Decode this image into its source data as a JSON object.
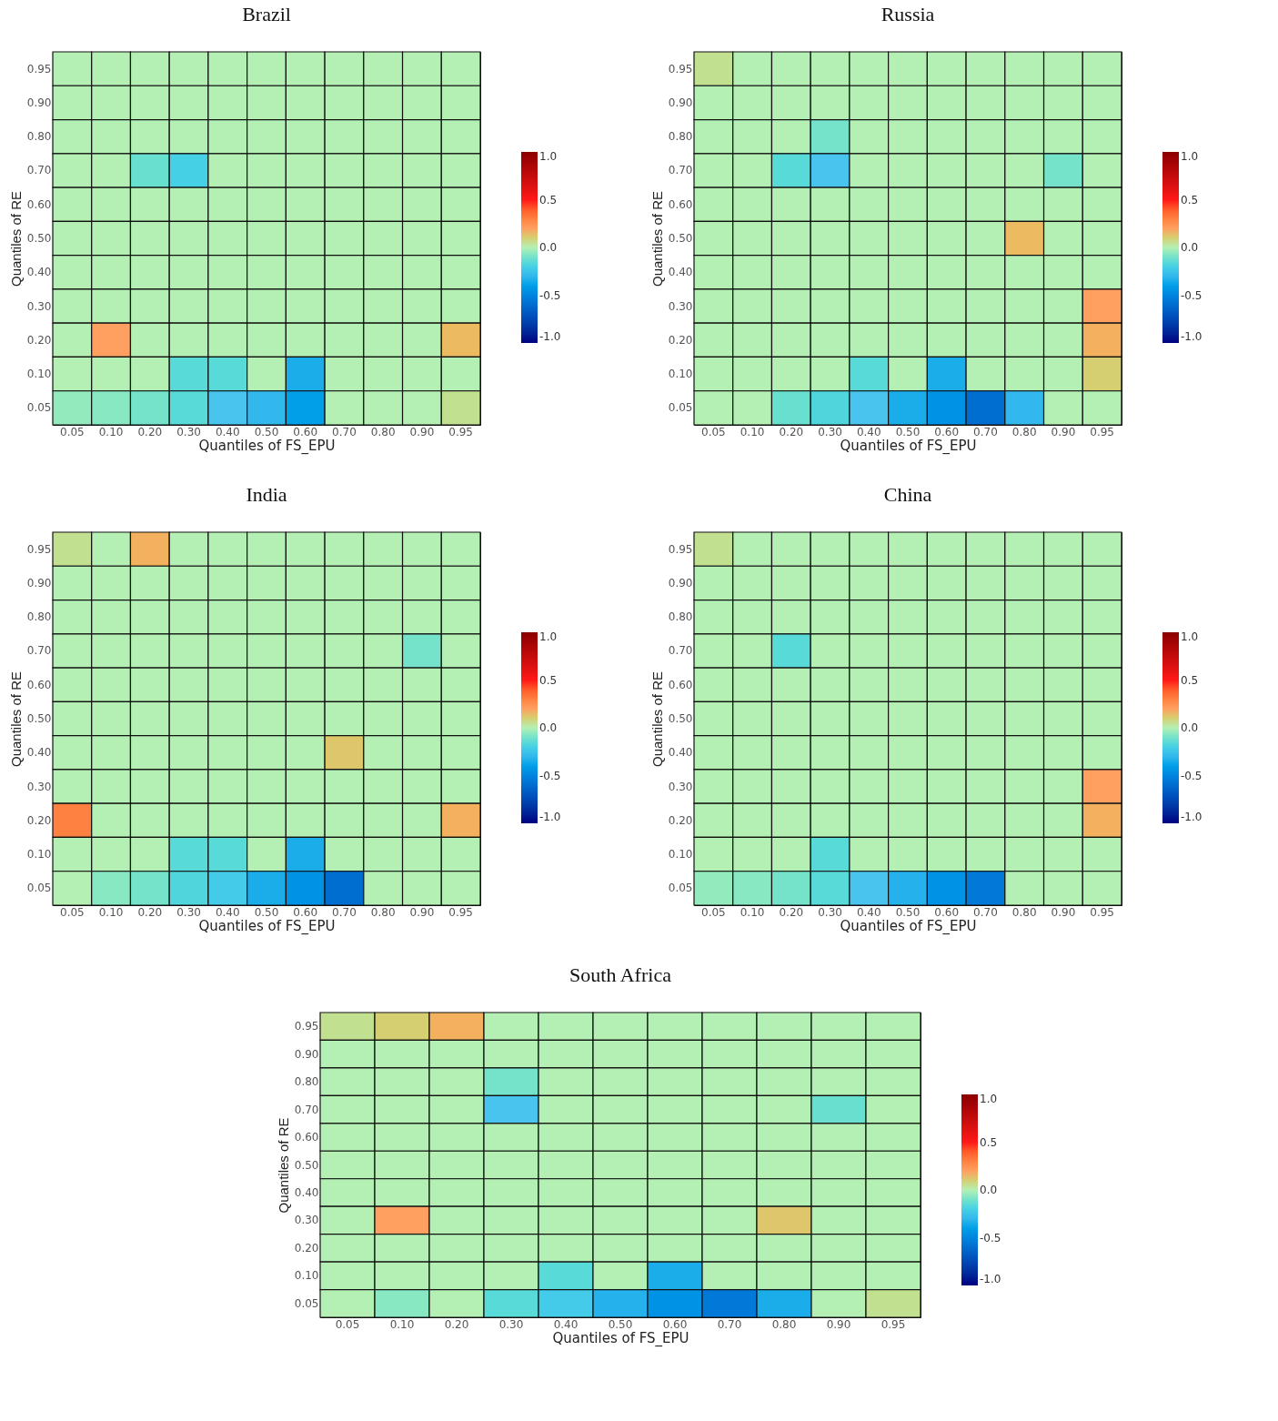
{
  "chart_data": [
    {
      "type": "heatmap",
      "title": "Brazil",
      "xlabel": "Quantiles of FS_EPU",
      "ylabel": "Quantiles of RE",
      "categories": [
        "0.05",
        "0.10",
        "0.20",
        "0.30",
        "0.40",
        "0.50",
        "0.60",
        "0.70",
        "0.80",
        "0.90",
        "0.95"
      ],
      "y_categories": [
        "0.95",
        "0.90",
        "0.80",
        "0.70",
        "0.60",
        "0.50",
        "0.40",
        "0.30",
        "0.20",
        "0.10",
        "0.05"
      ],
      "cells": [
        [
          0,
          0,
          0,
          0,
          0,
          0,
          0,
          0,
          0,
          0,
          0
        ],
        [
          0,
          0,
          0,
          0,
          0,
          0,
          0,
          0,
          0,
          0,
          0
        ],
        [
          0,
          0,
          0,
          0,
          0,
          0,
          0,
          0,
          0,
          0,
          0
        ],
        [
          0,
          0,
          -0.12,
          -0.2,
          0,
          0,
          0,
          0,
          0,
          0,
          0
        ],
        [
          0,
          0,
          0,
          0,
          0,
          0,
          0,
          0,
          0,
          0,
          0
        ],
        [
          0,
          0,
          0,
          0,
          0,
          0,
          0,
          0,
          0,
          0,
          0
        ],
        [
          0,
          0,
          0,
          0,
          0,
          0,
          0,
          0,
          0,
          0,
          0
        ],
        [
          0,
          0,
          0,
          0,
          0,
          0,
          0,
          0,
          0,
          0,
          0
        ],
        [
          0,
          0.2,
          0,
          0,
          0,
          0,
          0,
          0,
          0,
          0,
          0.15
        ],
        [
          0,
          0,
          0,
          -0.15,
          -0.15,
          0,
          -0.35,
          0,
          0,
          0,
          0
        ],
        [
          -0.05,
          -0.07,
          -0.1,
          -0.15,
          -0.25,
          -0.3,
          -0.4,
          0,
          0,
          0,
          0.05
        ]
      ],
      "clim": [
        -1,
        1
      ],
      "cticks": [
        {
          "value": 1,
          "label": "1.0"
        },
        {
          "value": 0.5,
          "label": "0.5"
        },
        {
          "value": 0,
          "label": "0.0"
        },
        {
          "value": -0.5,
          "label": "-0.5"
        },
        {
          "value": -1,
          "label": "-1.0"
        }
      ]
    },
    {
      "type": "heatmap",
      "title": "Russia",
      "xlabel": "Quantiles of FS_EPU",
      "ylabel": "Quantiles of RE",
      "categories": [
        "0.05",
        "0.10",
        "0.20",
        "0.30",
        "0.40",
        "0.50",
        "0.60",
        "0.70",
        "0.80",
        "0.90",
        "0.95"
      ],
      "y_categories": [
        "0.95",
        "0.90",
        "0.80",
        "0.70",
        "0.60",
        "0.50",
        "0.40",
        "0.30",
        "0.20",
        "0.10",
        "0.05"
      ],
      "cells": [
        [
          0.05,
          0,
          0,
          0,
          0,
          0,
          0,
          0,
          0,
          0,
          0
        ],
        [
          0,
          0,
          0,
          0,
          0,
          0,
          0,
          0,
          0,
          0,
          0
        ],
        [
          0,
          0,
          0,
          -0.1,
          0,
          0,
          0,
          0,
          0,
          0,
          0
        ],
        [
          0,
          0,
          -0.15,
          -0.25,
          0,
          0,
          0,
          0,
          0,
          -0.1,
          0
        ],
        [
          0,
          0,
          0,
          0,
          0,
          0,
          0,
          0,
          0,
          0,
          0
        ],
        [
          0,
          0,
          0,
          0,
          0,
          0,
          0,
          0,
          0.15,
          0,
          0
        ],
        [
          0,
          0,
          0,
          0,
          0,
          0,
          0,
          0,
          0,
          0,
          0
        ],
        [
          0,
          0,
          0,
          0,
          0,
          0,
          0,
          0,
          0,
          0,
          0.2
        ],
        [
          0,
          0,
          0,
          0,
          0,
          0,
          0,
          0,
          0,
          0,
          0.17
        ],
        [
          0,
          0,
          0,
          0,
          -0.15,
          0,
          -0.35,
          0,
          0,
          0,
          0.1
        ],
        [
          0,
          0,
          -0.12,
          -0.17,
          -0.25,
          -0.35,
          -0.45,
          -0.6,
          -0.3,
          0,
          0
        ]
      ],
      "clim": [
        -1,
        1
      ],
      "cticks": [
        {
          "value": 1,
          "label": "1.0"
        },
        {
          "value": 0.5,
          "label": "0.5"
        },
        {
          "value": 0,
          "label": "0.0"
        },
        {
          "value": -0.5,
          "label": "-0.5"
        },
        {
          "value": -1,
          "label": "-1.0"
        }
      ]
    },
    {
      "type": "heatmap",
      "title": "India",
      "xlabel": "Quantiles of FS_EPU",
      "ylabel": "Quantiles of RE",
      "categories": [
        "0.05",
        "0.10",
        "0.20",
        "0.30",
        "0.40",
        "0.50",
        "0.60",
        "0.70",
        "0.80",
        "0.90",
        "0.95"
      ],
      "y_categories": [
        "0.95",
        "0.90",
        "0.80",
        "0.70",
        "0.60",
        "0.50",
        "0.40",
        "0.30",
        "0.20",
        "0.10",
        "0.05"
      ],
      "cells": [
        [
          0.05,
          0,
          0.17,
          0,
          0,
          0,
          0,
          0,
          0,
          0,
          0
        ],
        [
          0,
          0,
          0,
          0,
          0,
          0,
          0,
          0,
          0,
          0,
          0
        ],
        [
          0,
          0,
          0,
          0,
          0,
          0,
          0,
          0,
          0,
          0,
          0
        ],
        [
          0,
          0,
          0,
          0,
          0,
          0,
          0,
          0,
          0,
          -0.1,
          0
        ],
        [
          0,
          0,
          0,
          0,
          0,
          0,
          0,
          0,
          0,
          0,
          0
        ],
        [
          0,
          0,
          0,
          0,
          0,
          0,
          0,
          0,
          0,
          0,
          0
        ],
        [
          0,
          0,
          0,
          0,
          0,
          0,
          0,
          0.12,
          0,
          0,
          0
        ],
        [
          0,
          0,
          0,
          0,
          0,
          0,
          0,
          0,
          0,
          0,
          0
        ],
        [
          0.3,
          0,
          0,
          0,
          0,
          0,
          0,
          0,
          0,
          0,
          0.17
        ],
        [
          0,
          0,
          0,
          -0.15,
          -0.15,
          0,
          -0.35,
          0,
          0,
          0,
          0
        ],
        [
          0,
          -0.07,
          -0.1,
          -0.17,
          -0.22,
          -0.35,
          -0.45,
          -0.6,
          0,
          0,
          0
        ]
      ],
      "clim": [
        -1,
        1
      ],
      "cticks": [
        {
          "value": 1,
          "label": "1.0"
        },
        {
          "value": 0.5,
          "label": "0.5"
        },
        {
          "value": 0,
          "label": "0.0"
        },
        {
          "value": -0.5,
          "label": "-0.5"
        },
        {
          "value": -1,
          "label": "-1.0"
        }
      ]
    },
    {
      "type": "heatmap",
      "title": "China",
      "xlabel": "Quantiles of FS_EPU",
      "ylabel": "Quantiles of RE",
      "categories": [
        "0.05",
        "0.10",
        "0.20",
        "0.30",
        "0.40",
        "0.50",
        "0.60",
        "0.70",
        "0.80",
        "0.90",
        "0.95"
      ],
      "y_categories": [
        "0.95",
        "0.90",
        "0.80",
        "0.70",
        "0.60",
        "0.50",
        "0.40",
        "0.30",
        "0.20",
        "0.10",
        "0.05"
      ],
      "cells": [
        [
          0.05,
          0,
          0,
          0,
          0,
          0,
          0,
          0,
          0,
          0,
          0
        ],
        [
          0,
          0,
          0,
          0,
          0,
          0,
          0,
          0,
          0,
          0,
          0
        ],
        [
          0,
          0,
          0,
          0,
          0,
          0,
          0,
          0,
          0,
          0,
          0
        ],
        [
          0,
          0,
          -0.15,
          0,
          0,
          0,
          0,
          0,
          0,
          0,
          0
        ],
        [
          0,
          0,
          0,
          0,
          0,
          0,
          0,
          0,
          0,
          0,
          0
        ],
        [
          0,
          0,
          0,
          0,
          0,
          0,
          0,
          0,
          0,
          0,
          0
        ],
        [
          0,
          0,
          0,
          0,
          0,
          0,
          0,
          0,
          0,
          0,
          0
        ],
        [
          0,
          0,
          0,
          0,
          0,
          0,
          0,
          0,
          0,
          0,
          0.2
        ],
        [
          0,
          0,
          0,
          0,
          0,
          0,
          0,
          0,
          0,
          0,
          0.17
        ],
        [
          0,
          0,
          0,
          -0.15,
          0,
          0,
          0,
          0,
          0,
          0,
          0
        ],
        [
          -0.05,
          -0.07,
          -0.1,
          -0.15,
          -0.25,
          -0.33,
          -0.45,
          -0.55,
          0,
          0,
          0
        ]
      ],
      "clim": [
        -1,
        1
      ],
      "cticks": [
        {
          "value": 1,
          "label": "1.0"
        },
        {
          "value": 0.5,
          "label": "0.5"
        },
        {
          "value": 0,
          "label": "0.0"
        },
        {
          "value": -0.5,
          "label": "-0.5"
        },
        {
          "value": -1,
          "label": "-1.0"
        }
      ]
    },
    {
      "type": "heatmap",
      "title": "South Africa",
      "xlabel": "Quantiles of FS_EPU",
      "ylabel": "Quantiles of RE",
      "categories": [
        "0.05",
        "0.10",
        "0.20",
        "0.30",
        "0.40",
        "0.50",
        "0.60",
        "0.70",
        "0.80",
        "0.90",
        "0.95"
      ],
      "y_categories": [
        "0.95",
        "0.90",
        "0.80",
        "0.70",
        "0.60",
        "0.50",
        "0.40",
        "0.30",
        "0.20",
        "0.10",
        "0.05"
      ],
      "cells": [
        [
          0.05,
          0.1,
          0.17,
          0,
          0,
          0,
          0,
          0,
          0,
          0,
          0
        ],
        [
          0,
          0,
          0,
          0,
          0,
          0,
          0,
          0,
          0,
          0,
          0
        ],
        [
          0,
          0,
          0,
          -0.1,
          0,
          0,
          0,
          0,
          0,
          0,
          0
        ],
        [
          0,
          0,
          0,
          -0.25,
          0,
          0,
          0,
          0,
          0,
          -0.12,
          0
        ],
        [
          0,
          0,
          0,
          0,
          0,
          0,
          0,
          0,
          0,
          0,
          0
        ],
        [
          0,
          0,
          0,
          0,
          0,
          0,
          0,
          0,
          0,
          0,
          0
        ],
        [
          0,
          0,
          0,
          0,
          0,
          0,
          0,
          0,
          0,
          0,
          0
        ],
        [
          0,
          0.2,
          0,
          0,
          0,
          0,
          0,
          0,
          0.12,
          0,
          0
        ],
        [
          0,
          0,
          0,
          0,
          0,
          0,
          0,
          0,
          0,
          0,
          0
        ],
        [
          0,
          0,
          0,
          0,
          -0.15,
          0,
          -0.35,
          0,
          0,
          0,
          0
        ],
        [
          0,
          -0.07,
          0,
          -0.15,
          -0.22,
          -0.33,
          -0.45,
          -0.55,
          -0.35,
          0,
          0.05
        ]
      ],
      "clim": [
        -1,
        1
      ],
      "cticks": [
        {
          "value": 1,
          "label": "1.0"
        },
        {
          "value": 0.5,
          "label": "0.5"
        },
        {
          "value": 0,
          "label": "0.0"
        },
        {
          "value": -0.5,
          "label": "-0.5"
        },
        {
          "value": -1,
          "label": "-1.0"
        }
      ]
    }
  ]
}
